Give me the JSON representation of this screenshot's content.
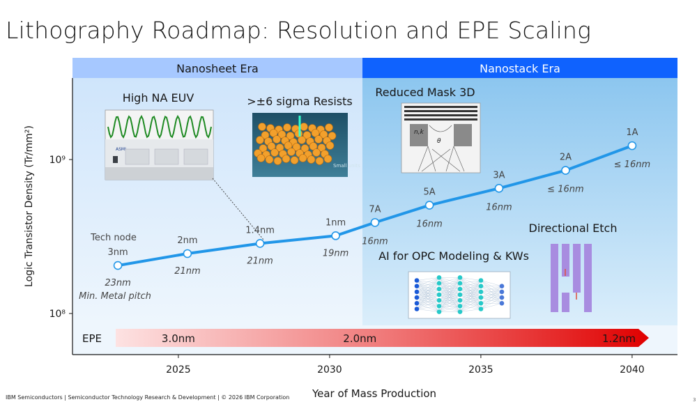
{
  "title": "Lithography Roadmap: Resolution and EPE Scaling",
  "footer": "IBM Semiconductors | Semiconductor Technology Research & Development | © 2026 IBM Corporation",
  "page_number": "3",
  "eras": [
    {
      "label": "Nanosheet Era",
      "color": "#a6c8ff"
    },
    {
      "label": "Nanostack Era",
      "color": "#0f62fe"
    }
  ],
  "callouts": {
    "high_na": "High NA EUV",
    "resists": ">±6 sigma Resists",
    "mask3d": "Reduced Mask 3D",
    "ai_opc": "AI for OPC Modeling & KWs",
    "etch": "Directional Etch",
    "small_units": "Small units",
    "nk": "n,k",
    "theta": "θ",
    "asml": "ASML"
  },
  "legend_notes": {
    "tech_node": "Tech node",
    "min_pitch": "Min. Metal pitch"
  },
  "chart_data": {
    "type": "line",
    "xlabel": "Year of Mass Production",
    "ylabel": "Logic Transistor Density (Tr/mm²)",
    "x_ticks": [
      "2025",
      "2030",
      "2035",
      "2040"
    ],
    "y_ticks": [
      "10⁸",
      "10⁹"
    ],
    "xlim": [
      2021.5,
      2041.5
    ],
    "y_scale": "log",
    "series": [
      {
        "points": [
          {
            "year": 2023.0,
            "density": 205000000.0,
            "node": "3nm",
            "pitch": "23nm"
          },
          {
            "year": 2025.3,
            "density": 245000000.0,
            "node": "2nm",
            "pitch": "21nm"
          },
          {
            "year": 2027.7,
            "density": 285000000.0,
            "node": "1.4nm",
            "pitch": "21nm"
          },
          {
            "year": 2030.2,
            "density": 320000000.0,
            "node": "1nm",
            "pitch": "19nm"
          },
          {
            "year": 2031.5,
            "density": 390000000.0,
            "node": "7A",
            "pitch": "16nm"
          },
          {
            "year": 2033.3,
            "density": 505000000.0,
            "node": "5A",
            "pitch": "16nm"
          },
          {
            "year": 2035.6,
            "density": 650000000.0,
            "node": "3A",
            "pitch": "16nm"
          },
          {
            "year": 2037.8,
            "density": 850000000.0,
            "node": "2A",
            "pitch": "≤ 16nm"
          },
          {
            "year": 2040.0,
            "density": 1230000000.0,
            "node": "1A",
            "pitch": "≤ 16nm"
          }
        ]
      }
    ],
    "epe": {
      "label": "EPE",
      "values": [
        {
          "year": 2025.0,
          "value": "3.0nm"
        },
        {
          "year": 2031.0,
          "value": "2.0nm"
        },
        {
          "year": 2040.0,
          "value": "1.2nm"
        }
      ]
    }
  }
}
